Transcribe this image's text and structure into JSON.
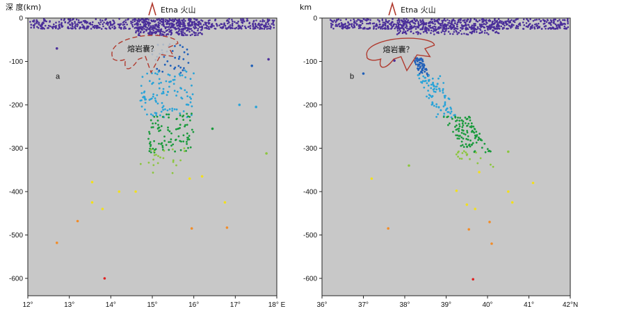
{
  "figure": {
    "volcano_label": "Etna 火山",
    "magma_label": "熔岩囊？",
    "colors": {
      "background": "#c8c8c8",
      "volcano": "#b03a2e",
      "magma_outline": "#b03a2e",
      "depth_0_100": "#4b2f9a",
      "depth_100_150": "#1f5fb8",
      "depth_150_250": "#29a3d8",
      "depth_250_300": "#1a9a3c",
      "depth_300_350": "#8cc63f",
      "depth_350_450": "#f2e01c",
      "depth_450_550": "#f28c28",
      "depth_550_650": "#e02020"
    }
  },
  "chart_data": [
    {
      "type": "scatter",
      "panel": "a",
      "ylabel": "深 度(km)",
      "x_tick_labels": [
        "12°",
        "13°",
        "14°",
        "15°",
        "16°",
        "17°",
        "18° E"
      ],
      "y_tick_labels": [
        "0",
        "-100",
        "-200",
        "-300",
        "-400",
        "-500",
        "-600"
      ],
      "xlim": [
        12,
        18
      ],
      "ylim": [
        -640,
        0
      ],
      "volcano_x": 15.0,
      "magma_x_range": [
        13.95,
        15.65
      ],
      "magma_y_range": [
        -130,
        -38
      ],
      "cluster_shallow": {
        "n": 560,
        "x_range": [
          12.05,
          17.95
        ],
        "y_range": [
          -25,
          -2
        ]
      },
      "cluster_dense": {
        "n": 280,
        "x_range": [
          14.6,
          16.2
        ],
        "y_range": [
          -40,
          -2
        ]
      },
      "cluster_slab": [
        {
          "n": 40,
          "x_range": [
            15.0,
            15.9
          ],
          "y_range": [
            -130,
            -60
          ],
          "color": "depth_100_150"
        },
        {
          "n": 110,
          "x_range": [
            14.7,
            16.0
          ],
          "y_range": [
            -230,
            -120
          ],
          "color": "depth_150_250"
        },
        {
          "n": 95,
          "x_range": [
            14.9,
            16.0
          ],
          "y_range": [
            -310,
            -220
          ],
          "color": "depth_250_300"
        },
        {
          "n": 22,
          "x_range": [
            14.7,
            15.8
          ],
          "y_range": [
            -360,
            -300
          ],
          "color": "depth_300_350"
        }
      ],
      "points": [
        {
          "x": 12.7,
          "y": -70
        },
        {
          "x": 17.4,
          "y": -110
        },
        {
          "x": 17.8,
          "y": -95
        },
        {
          "x": 17.1,
          "y": -200
        },
        {
          "x": 17.5,
          "y": -205
        },
        {
          "x": 16.45,
          "y": -255
        },
        {
          "x": 17.75,
          "y": -312
        },
        {
          "x": 15.9,
          "y": -370
        },
        {
          "x": 16.2,
          "y": -365
        },
        {
          "x": 13.55,
          "y": -378
        },
        {
          "x": 14.2,
          "y": -400
        },
        {
          "x": 14.6,
          "y": -400
        },
        {
          "x": 13.55,
          "y": -425
        },
        {
          "x": 13.8,
          "y": -440
        },
        {
          "x": 16.75,
          "y": -425
        },
        {
          "x": 13.2,
          "y": -468
        },
        {
          "x": 15.95,
          "y": -485
        },
        {
          "x": 16.8,
          "y": -483
        },
        {
          "x": 12.7,
          "y": -518
        },
        {
          "x": 13.85,
          "y": -600
        }
      ]
    },
    {
      "type": "scatter",
      "panel": "b",
      "ylabel": "km",
      "x_tick_labels": [
        "36°",
        "37°",
        "38°",
        "39°",
        "40°",
        "41°",
        "42°N"
      ],
      "y_tick_labels": [
        "0",
        "-100",
        "-200",
        "-300",
        "-400",
        "-500",
        "-600"
      ],
      "xlim": [
        36,
        42
      ],
      "ylim": [
        -640,
        0
      ],
      "volcano_x": 37.7,
      "magma_x_range": [
        37.0,
        38.75
      ],
      "magma_y_range": [
        -125,
        -45
      ],
      "cluster_shallow": {
        "n": 620,
        "x_range": [
          36.2,
          41.95
        ],
        "y_range": [
          -25,
          -2
        ]
      },
      "cluster_dense": {
        "n": 260,
        "x_range": [
          37.8,
          40.3
        ],
        "y_range": [
          -38,
          -2
        ]
      },
      "cluster_slab": [
        {
          "n": 55,
          "x_range": [
            38.2,
            38.6
          ],
          "y_range": [
            -135,
            -90
          ],
          "color": "depth_100_150"
        },
        {
          "n": 90,
          "x_range": [
            38.3,
            39.3
          ],
          "y_range": [
            -230,
            -130
          ],
          "color": "depth_150_250"
        },
        {
          "n": 110,
          "x_range": [
            38.9,
            40.1
          ],
          "y_range": [
            -310,
            -225
          ],
          "color": "depth_250_300"
        },
        {
          "n": 18,
          "x_range": [
            39.0,
            40.2
          ],
          "y_range": [
            -345,
            -300
          ],
          "color": "depth_300_350"
        }
      ],
      "points": [
        {
          "x": 37.0,
          "y": -128
        },
        {
          "x": 37.75,
          "y": -98
        },
        {
          "x": 38.1,
          "y": -340
        },
        {
          "x": 37.2,
          "y": -370
        },
        {
          "x": 39.8,
          "y": -355
        },
        {
          "x": 40.5,
          "y": -308
        },
        {
          "x": 40.5,
          "y": -400
        },
        {
          "x": 41.1,
          "y": -380
        },
        {
          "x": 39.25,
          "y": -398
        },
        {
          "x": 39.5,
          "y": -430
        },
        {
          "x": 39.7,
          "y": -440
        },
        {
          "x": 40.6,
          "y": -425
        },
        {
          "x": 37.6,
          "y": -485
        },
        {
          "x": 39.55,
          "y": -487
        },
        {
          "x": 40.05,
          "y": -470
        },
        {
          "x": 40.1,
          "y": -520
        },
        {
          "x": 39.65,
          "y": -602
        }
      ]
    }
  ]
}
